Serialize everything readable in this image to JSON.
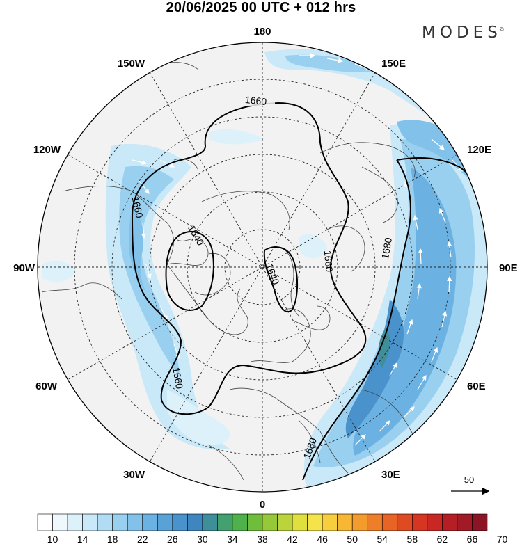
{
  "title": "20/06/2025  00 UTC  + 012 hrs",
  "brand": {
    "name": "MODES",
    "mark": "©"
  },
  "longitude_labels": {
    "top": "180",
    "bottom": "0",
    "left": "90W",
    "right": "90E",
    "upper_left_outer": "150W",
    "upper_right_outer": "150E",
    "upper_left_inner": "120W",
    "upper_right_inner": "120E",
    "lower_left_inner": "60W",
    "lower_right_inner": "60E",
    "lower_left_outer": "30W",
    "lower_right_outer": "30E"
  },
  "contour_labels": [
    "1660",
    "1660",
    "1660",
    "1640",
    "1640",
    "1660",
    "1680",
    "1680"
  ],
  "wind_reference": {
    "value": "50"
  },
  "colorbar": {
    "labels": [
      "10",
      "14",
      "18",
      "22",
      "26",
      "30",
      "34",
      "38",
      "42",
      "46",
      "50",
      "54",
      "58",
      "62",
      "66",
      "70"
    ],
    "colors": [
      "#ffffff",
      "#eef8fd",
      "#ddf1fb",
      "#c9e8f8",
      "#b1dcf4",
      "#99cfef",
      "#82c1e9",
      "#6bb2e2",
      "#58a2d8",
      "#4a92cc",
      "#3f86c1",
      "#3f8f9a",
      "#43a06f",
      "#4fb14c",
      "#6ebe3c",
      "#96c93a",
      "#bcd43b",
      "#dfe03e",
      "#f4e34a",
      "#f7ce3e",
      "#f7b735",
      "#f49b2d",
      "#ef7e28",
      "#e86424",
      "#df4a22",
      "#d63522",
      "#c92724",
      "#b51e25",
      "#a11a26",
      "#8b1524"
    ]
  }
}
